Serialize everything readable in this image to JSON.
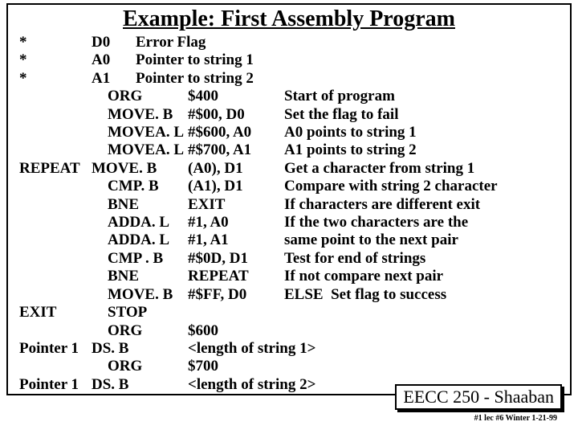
{
  "title": "Example:  First Assembly Program",
  "rows": [
    {
      "label": "*",
      "reg": "D0",
      "op": "",
      "arg": "Error Flag",
      "comment": ""
    },
    {
      "label": "*",
      "reg": "A0",
      "op": "",
      "arg": "Pointer to string 1",
      "comment": ""
    },
    {
      "label": "*",
      "reg": "A1",
      "op": "",
      "arg": "Pointer to string 2",
      "comment": ""
    },
    {
      "label": "",
      "reg": "",
      "op": "ORG",
      "op_indent": true,
      "arg": "$400",
      "comment": "Start of program"
    },
    {
      "label": "",
      "reg": "",
      "op": "MOVE. B",
      "op_indent": true,
      "arg": "#$00, D0",
      "comment": "Set the flag to fail"
    },
    {
      "label": "",
      "reg": "",
      "op": "MOVEA. L",
      "op_indent": true,
      "arg": "#$600, A0",
      "comment": "A0 points to string 1"
    },
    {
      "label": "",
      "reg": "",
      "op": "MOVEA. L",
      "op_indent": true,
      "arg": "#$700, A1",
      "comment": "A1 points to string 2"
    },
    {
      "label": "REPEAT",
      "reg": "",
      "op": "MOVE. B",
      "arg": "(A0), D1",
      "comment": "Get a character from string 1"
    },
    {
      "label": "",
      "reg": "",
      "op": "CMP. B",
      "op_indent": true,
      "arg": "(A1), D1",
      "comment": "Compare with string 2 character"
    },
    {
      "label": "",
      "reg": "",
      "op": "BNE",
      "op_indent": true,
      "arg": "EXIT",
      "comment": "If characters are different exit"
    },
    {
      "label": "",
      "reg": "",
      "op": "ADDA. L",
      "op_indent": true,
      "arg": "#1, A0",
      "comment": "If the two characters are the"
    },
    {
      "label": "",
      "reg": "",
      "op": "ADDA. L",
      "op_indent": true,
      "arg": "#1, A1",
      "comment": "same point to the next pair"
    },
    {
      "label": "",
      "reg": "",
      "op": "CMP . B",
      "op_indent": true,
      "arg": "#$0D, D1",
      "comment": "Test for end of strings"
    },
    {
      "label": "",
      "reg": "",
      "op": "BNE",
      "op_indent": true,
      "arg": "REPEAT",
      "comment": "If not compare next pair"
    },
    {
      "label": "",
      "reg": "",
      "op": "MOVE. B",
      "op_indent": true,
      "arg": "#$FF, D0",
      "comment": "ELSE  Set flag to success"
    },
    {
      "label": "EXIT",
      "reg": "",
      "op": "STOP",
      "op_indent": true,
      "arg": "",
      "comment": ""
    },
    {
      "label": "",
      "reg": "",
      "op": "ORG",
      "op_indent": true,
      "arg": "$600",
      "comment": ""
    },
    {
      "label": "Pointer 1",
      "reg": "",
      "op": "DS. B",
      "arg": "<length of string 1>",
      "comment": ""
    },
    {
      "label": "",
      "reg": "",
      "op": "ORG",
      "op_indent": true,
      "arg": "$700",
      "comment": ""
    },
    {
      "label": "Pointer 1",
      "reg": "",
      "op": "DS. B",
      "arg": "<length of string 2>",
      "comment": ""
    }
  ],
  "footer_box": "EECC 250 - Shaaban",
  "footer_small": "#1 lec #6  Winter 1-21-99",
  "colors": {
    "border": "#000000",
    "background": "#ffffff",
    "text": "#000000"
  }
}
